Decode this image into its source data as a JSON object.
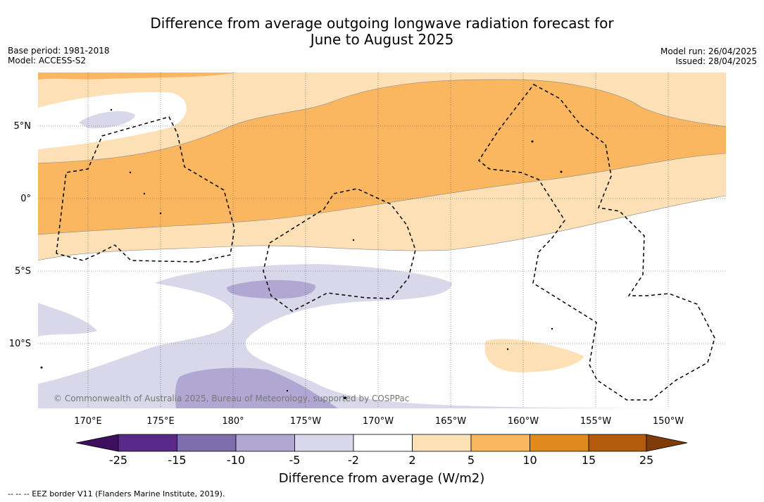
{
  "header": {
    "title_line1": "Difference from average outgoing longwave radiation forecast for",
    "title_line2": "June to August 2025",
    "base_period": "Base period: 1981-2018",
    "model": "Model: ACCESS-S2",
    "model_run": "Model run: 26/04/2025",
    "issued": "Issued: 28/04/2025"
  },
  "map": {
    "lon_labels": [
      "170°E",
      "175°E",
      "180°",
      "175°W",
      "170°W",
      "165°W",
      "160°W",
      "155°W",
      "150°W"
    ],
    "lat_labels": [
      "5°N",
      "0°",
      "5°S",
      "10°S"
    ],
    "copyright": "© Commonwealth of Australia 2025, Bureau of Meteorology, supported by COSPPac",
    "colors": {
      "strong_negative": "#b0a8d2",
      "mild_negative": "#d8d8ea",
      "neutral": "#ffffff",
      "mild_positive": "#fde0b6",
      "moderate_positive": "#fbb660",
      "eez_border": "#000000"
    }
  },
  "colorbar": {
    "title": "Difference from average (W/m2)",
    "ticks": [
      "-25",
      "-15",
      "-10",
      "-5",
      "-2",
      "2",
      "5",
      "10",
      "15",
      "25"
    ],
    "colors": [
      "#3f0f5f",
      "#59298a",
      "#7f6ead",
      "#b0a8d2",
      "#d8d8ea",
      "#ffffff",
      "#fde0b6",
      "#fbb660",
      "#e08a1d",
      "#b35a0c",
      "#7f3b08"
    ]
  },
  "footnote": "--  --  -- EEZ border V11 (Flanders Marine Institute, 2019)."
}
